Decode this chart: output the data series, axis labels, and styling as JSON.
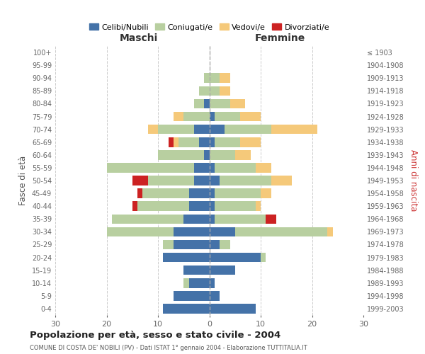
{
  "age_groups": [
    "0-4",
    "5-9",
    "10-14",
    "15-19",
    "20-24",
    "25-29",
    "30-34",
    "35-39",
    "40-44",
    "45-49",
    "50-54",
    "55-59",
    "60-64",
    "65-69",
    "70-74",
    "75-79",
    "80-84",
    "85-89",
    "90-94",
    "95-99",
    "100+"
  ],
  "birth_years": [
    "1999-2003",
    "1994-1998",
    "1989-1993",
    "1984-1988",
    "1979-1983",
    "1974-1978",
    "1969-1973",
    "1964-1968",
    "1959-1963",
    "1954-1958",
    "1949-1953",
    "1944-1948",
    "1939-1943",
    "1934-1938",
    "1929-1933",
    "1924-1928",
    "1919-1923",
    "1914-1918",
    "1909-1913",
    "1904-1908",
    "≤ 1903"
  ],
  "male": {
    "celibi": [
      9,
      7,
      4,
      5,
      9,
      7,
      7,
      5,
      4,
      4,
      3,
      3,
      1,
      2,
      3,
      0,
      1,
      0,
      0,
      0,
      0
    ],
    "coniugati": [
      0,
      0,
      1,
      0,
      0,
      2,
      13,
      14,
      10,
      9,
      9,
      17,
      9,
      4,
      7,
      5,
      2,
      2,
      1,
      0,
      0
    ],
    "vedovi": [
      0,
      0,
      0,
      0,
      0,
      0,
      0,
      0,
      0,
      0,
      0,
      0,
      0,
      1,
      2,
      2,
      0,
      0,
      0,
      0,
      0
    ],
    "divorziati": [
      0,
      0,
      0,
      0,
      0,
      0,
      0,
      0,
      1,
      1,
      3,
      0,
      0,
      1,
      0,
      0,
      0,
      0,
      0,
      0,
      0
    ]
  },
  "female": {
    "nubili": [
      9,
      2,
      1,
      5,
      10,
      2,
      5,
      1,
      1,
      1,
      2,
      1,
      0,
      1,
      3,
      1,
      0,
      0,
      0,
      0,
      0
    ],
    "coniugate": [
      0,
      0,
      0,
      0,
      1,
      2,
      18,
      10,
      8,
      9,
      10,
      8,
      5,
      5,
      9,
      5,
      4,
      2,
      2,
      0,
      0
    ],
    "vedove": [
      0,
      0,
      0,
      0,
      0,
      0,
      1,
      0,
      1,
      2,
      4,
      3,
      3,
      4,
      9,
      4,
      3,
      2,
      2,
      0,
      0
    ],
    "divorziate": [
      0,
      0,
      0,
      0,
      0,
      0,
      0,
      2,
      0,
      0,
      0,
      0,
      0,
      0,
      0,
      0,
      0,
      0,
      0,
      0,
      0
    ]
  },
  "colors": {
    "celibi": "#4472a8",
    "coniugati": "#b8cfa0",
    "vedovi": "#f5c97a",
    "divorziati": "#cc2222"
  },
  "title": "Popolazione per età, sesso e stato civile - 2004",
  "subtitle": "COMUNE DI COSTA DE' NOBILI (PV) - Dati ISTAT 1° gennaio 2004 - Elaborazione TUTTITALIA.IT",
  "xlabel_left": "Maschi",
  "xlabel_right": "Femmine",
  "ylabel_left": "Fasce di età",
  "ylabel_right": "Anni di nascita",
  "xlim": 30,
  "legend_labels": [
    "Celibi/Nubili",
    "Coniugati/e",
    "Vedovi/e",
    "Divorziati/e"
  ],
  "bg_color": "#ffffff",
  "grid_color": "#cccccc",
  "maschi_color": "#333333",
  "femmine_color": "#333333"
}
